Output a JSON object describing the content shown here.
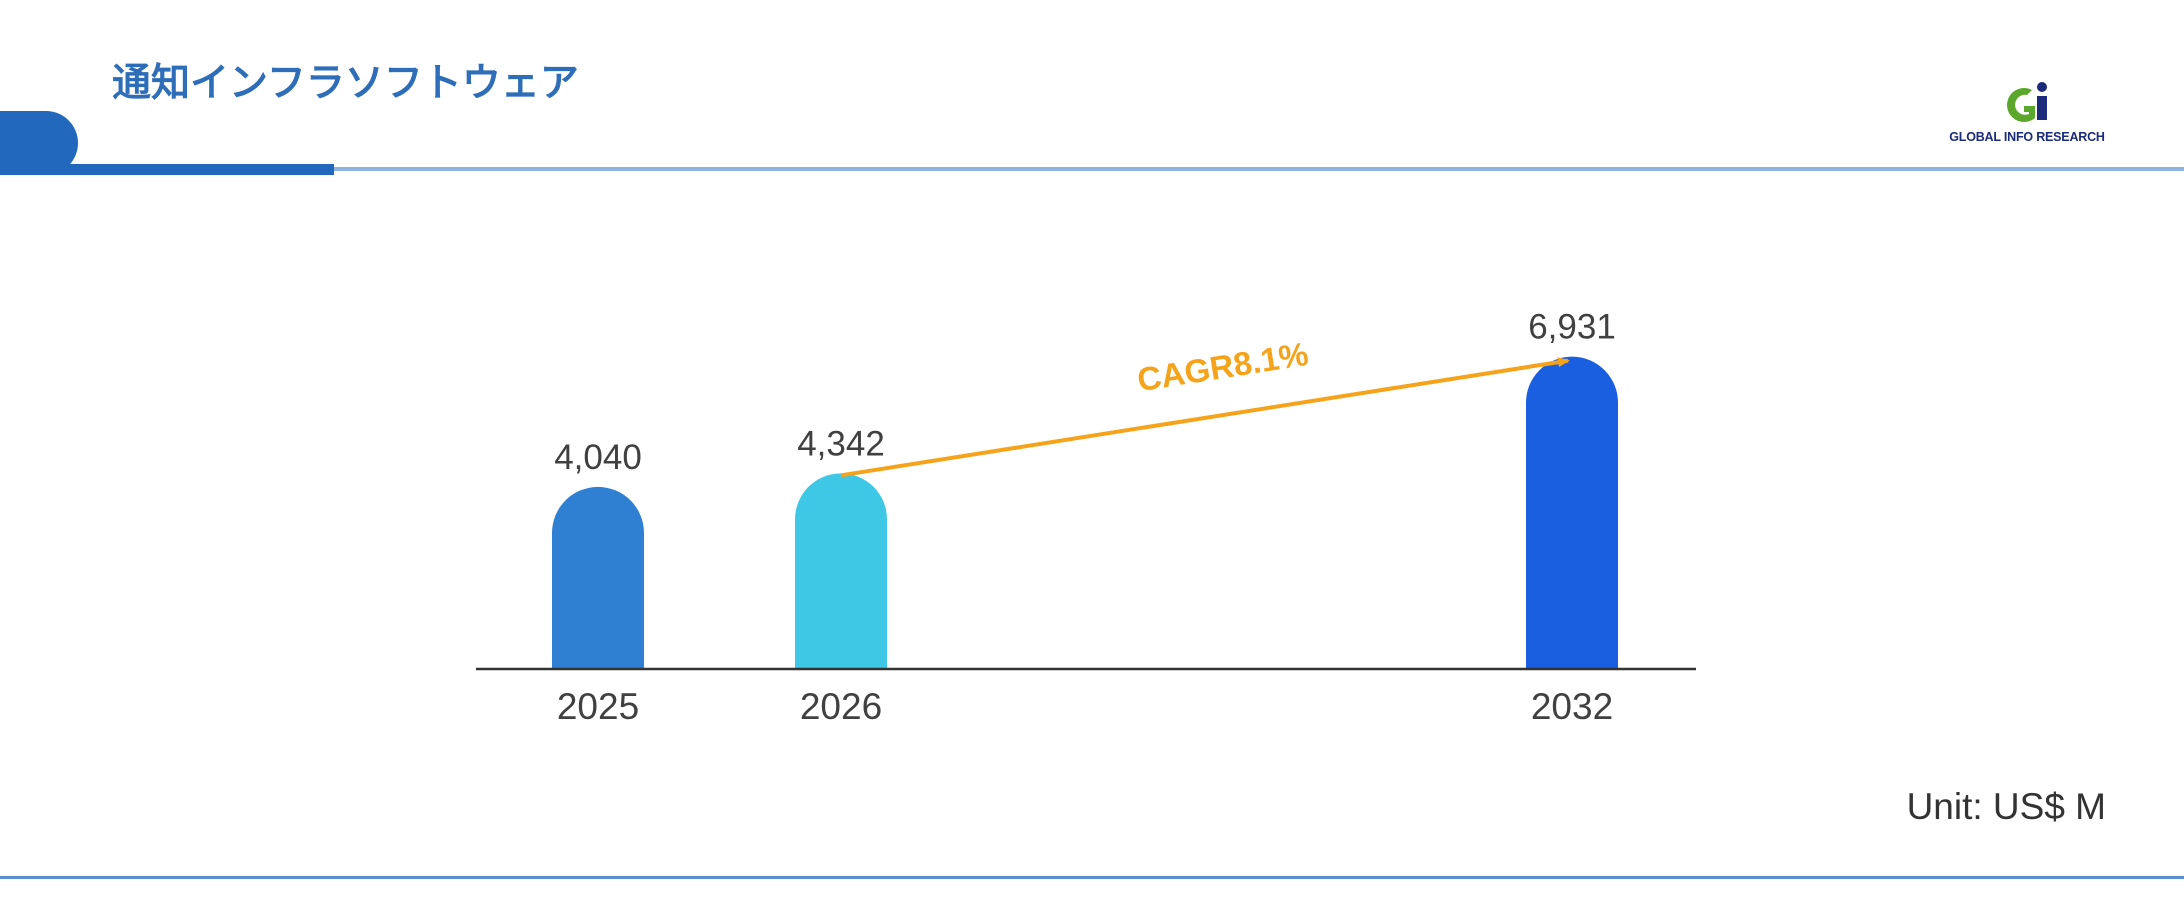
{
  "header": {
    "title": "通知インフラソフトウェア"
  },
  "logo": {
    "text": "GLOBAL INFO RESEARCH",
    "colors": {
      "green": "#5aa72c",
      "navy": "#1c2a7a"
    }
  },
  "unit": "Unit: US$ M",
  "colors": {
    "accent": "#2268bd",
    "cagr_arrow": "#f5a31a"
  },
  "chart_data": {
    "type": "bar",
    "categories": [
      "2025",
      "2026",
      "2032"
    ],
    "values": [
      4040,
      4342,
      6931
    ],
    "value_labels": [
      "4,040",
      "4,342",
      "6,931"
    ],
    "bar_colors": [
      "#2f80d2",
      "#3ec8e6",
      "#1a5fdf"
    ],
    "ylim": [
      0,
      7500
    ],
    "annotation": {
      "label": "CAGR8.1%",
      "from": "2026",
      "to": "2032",
      "color": "#f5a31a"
    },
    "title": "",
    "xlabel": "",
    "ylabel": "",
    "grid": false
  }
}
